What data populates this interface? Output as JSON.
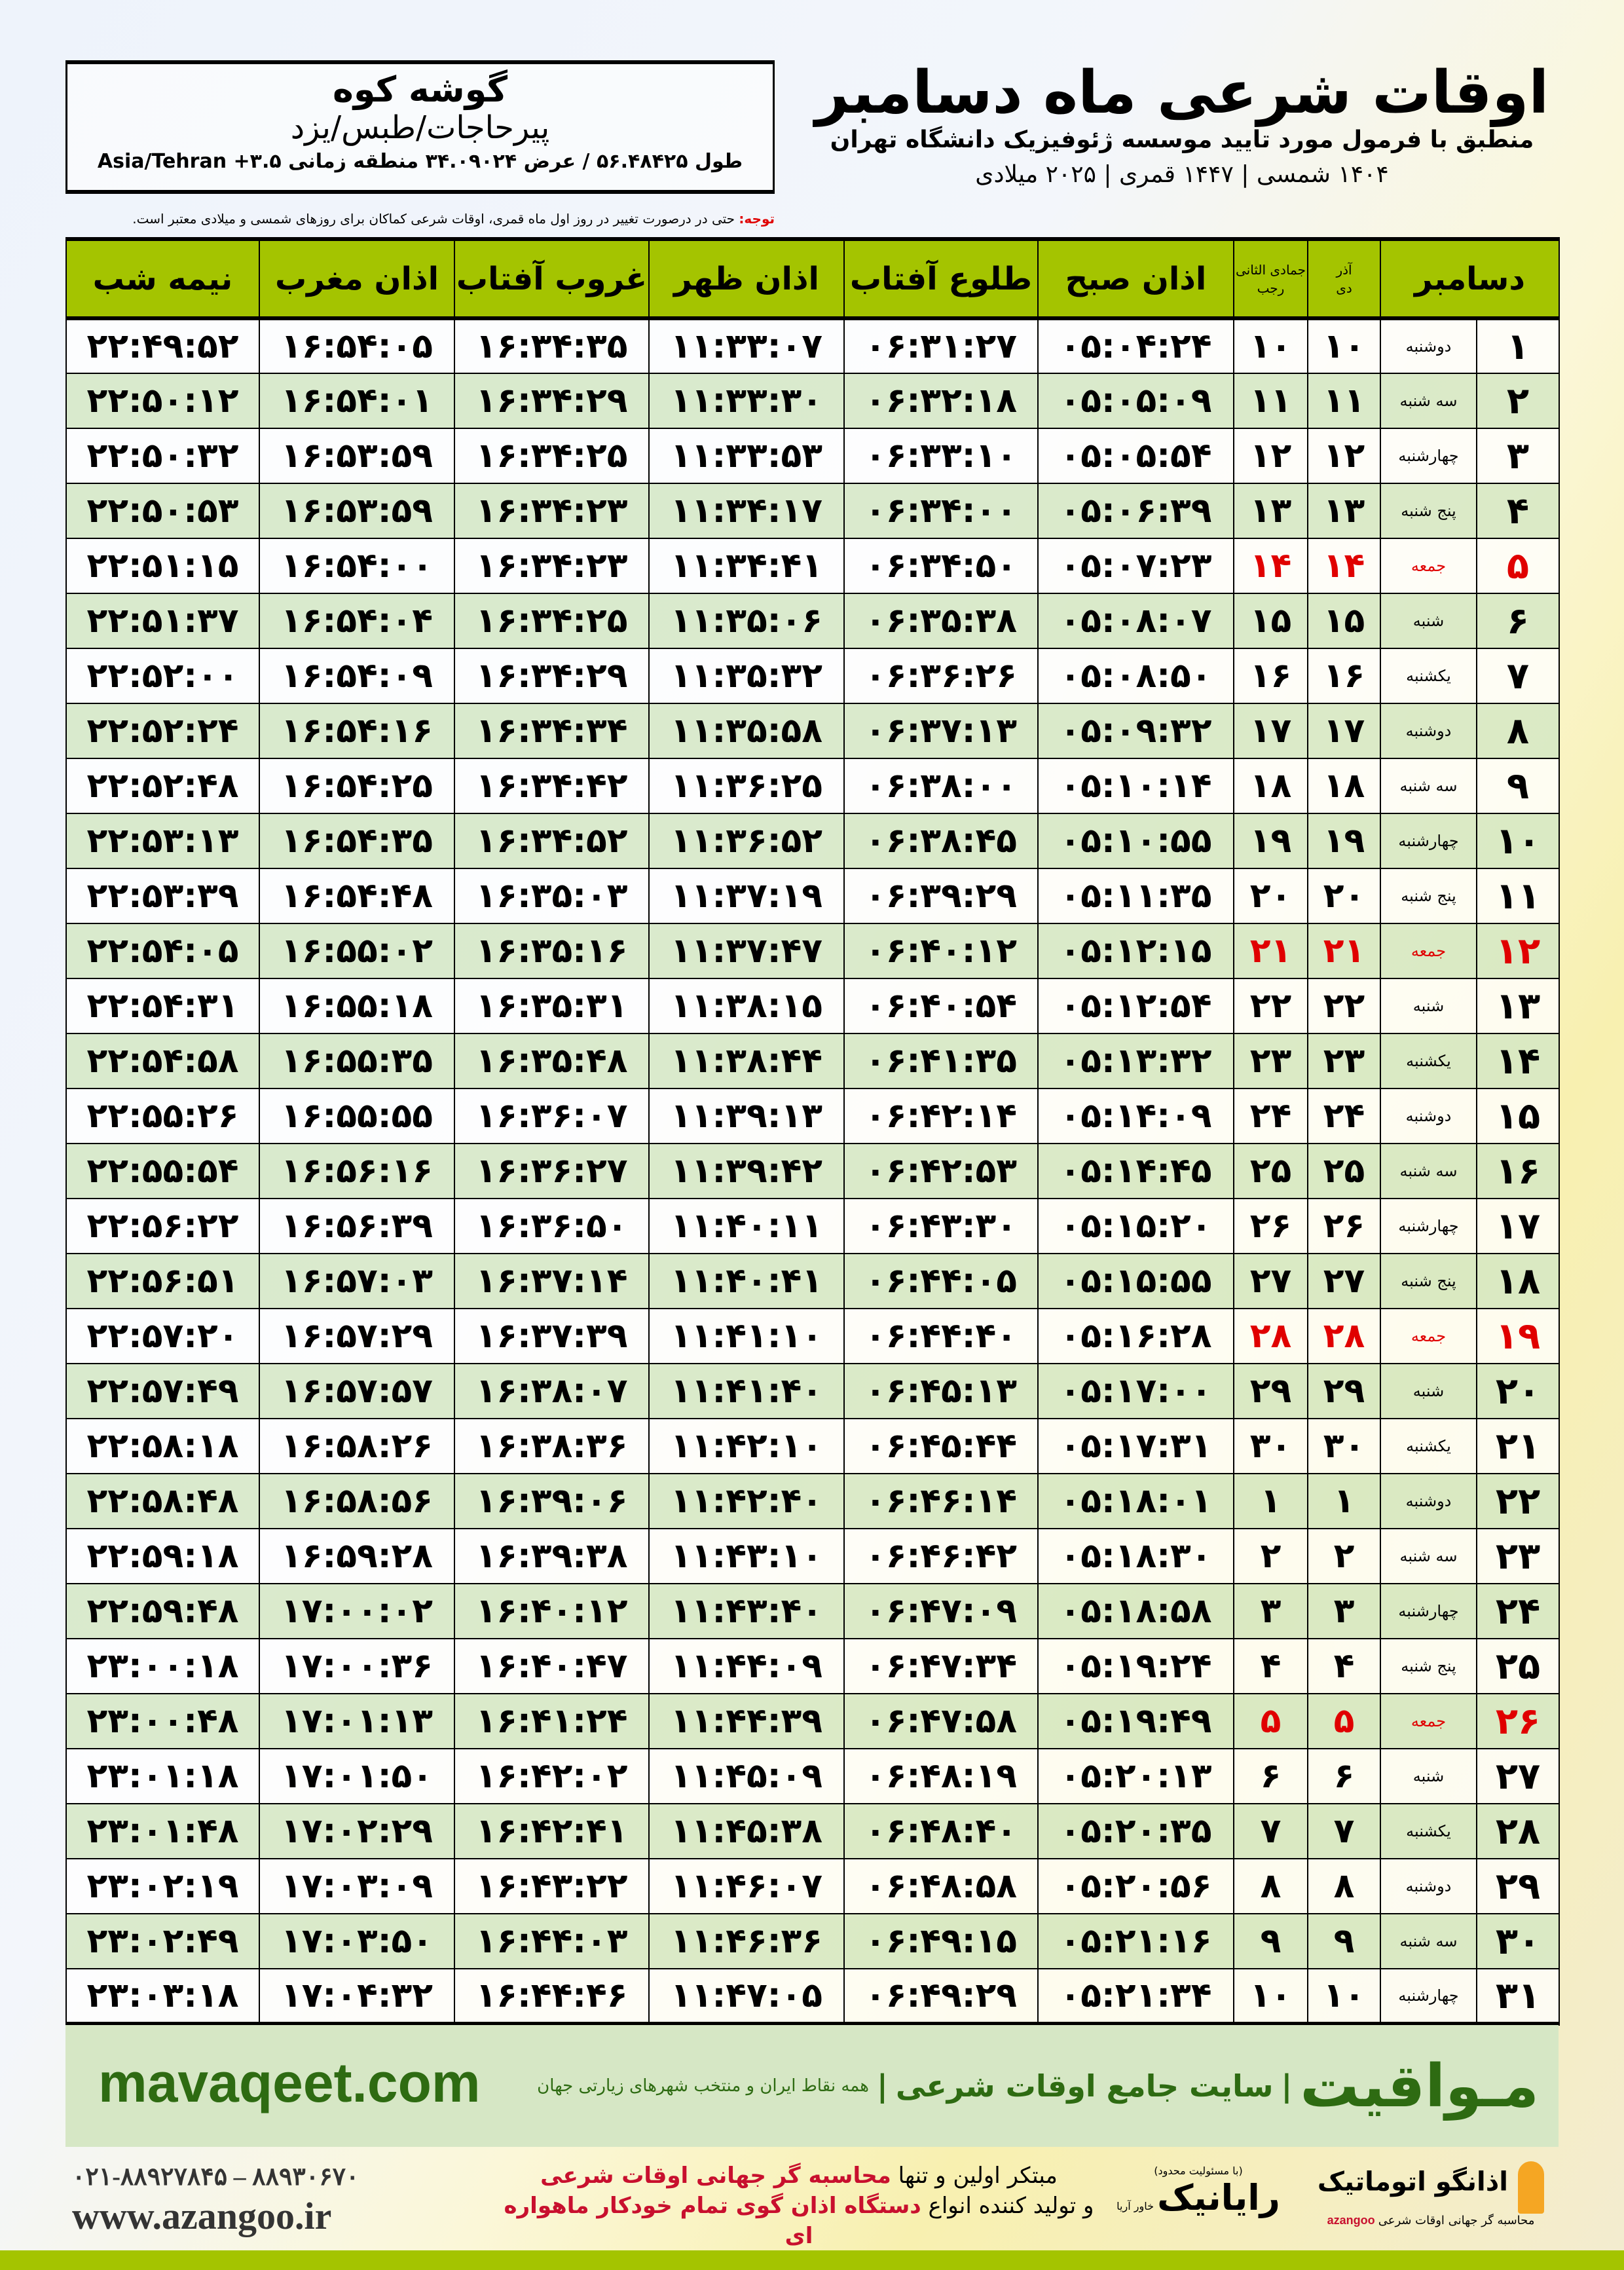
{
  "colors": {
    "header_green": "#a4c400",
    "row_green": "#d5e8c4",
    "friday_red": "#e00000",
    "brand_green": "#2e6b12"
  },
  "location": {
    "name": "گوشه کوه",
    "region": "پیرحاجات/طبس/یزد",
    "coords": "طول ۵۶.۴۸۴۲۵ / عرض ۳۴.۰۹۰۲۴ منطقه زمانی ۳.۵+ Asia/Tehran"
  },
  "title": {
    "main": "اوقات شرعی ماه دسامبر",
    "sub": "منطبق با فرمول مورد تایید موسسه ژئوفیزیک دانشگاه تهران",
    "years": "۱۴۰۴ شمسی | ۱۴۴۷ قمری | ۲۰۲۵ میلادی"
  },
  "note": {
    "label": "توجه:",
    "text": " حتی در درصورت تغییر در روز اول ماه قمری، اوقات شرعی کماکان برای روزهای شمسی و میلادی معتبر است."
  },
  "table": {
    "headers": {
      "month": "دسامبر",
      "dey_top": "آذر",
      "dey": "دی",
      "rajab_top": "جمادی الثانی",
      "rajab": "رجب",
      "sobh": "اذان صبح",
      "tolu": "طلوع آفتاب",
      "zohr": "اذان ظهر",
      "ghorub": "غروب آفتاب",
      "maghrib": "اذان مغرب",
      "nime": "نیمه شب"
    },
    "rows": [
      [
        "۱",
        "دوشنبه",
        "۱۰",
        "۱۰",
        "۰۵:۰۴:۲۴",
        "۰۶:۳۱:۲۷",
        "۱۱:۳۳:۰۷",
        "۱۶:۳۴:۳۵",
        "۱۶:۵۴:۰۵",
        "۲۲:۴۹:۵۲"
      ],
      [
        "۲",
        "سه شنبه",
        "۱۱",
        "۱۱",
        "۰۵:۰۵:۰۹",
        "۰۶:۳۲:۱۸",
        "۱۱:۳۳:۳۰",
        "۱۶:۳۴:۲۹",
        "۱۶:۵۴:۰۱",
        "۲۲:۵۰:۱۲"
      ],
      [
        "۳",
        "چهارشنبه",
        "۱۲",
        "۱۲",
        "۰۵:۰۵:۵۴",
        "۰۶:۳۳:۱۰",
        "۱۱:۳۳:۵۳",
        "۱۶:۳۴:۲۵",
        "۱۶:۵۳:۵۹",
        "۲۲:۵۰:۳۲"
      ],
      [
        "۴",
        "پنج شنبه",
        "۱۳",
        "۱۳",
        "۰۵:۰۶:۳۹",
        "۰۶:۳۴:۰۰",
        "۱۱:۳۴:۱۷",
        "۱۶:۳۴:۲۳",
        "۱۶:۵۳:۵۹",
        "۲۲:۵۰:۵۳"
      ],
      [
        "۵",
        "جمعه",
        "۱۴",
        "۱۴",
        "۰۵:۰۷:۲۳",
        "۰۶:۳۴:۵۰",
        "۱۱:۳۴:۴۱",
        "۱۶:۳۴:۲۳",
        "۱۶:۵۴:۰۰",
        "۲۲:۵۱:۱۵"
      ],
      [
        "۶",
        "شنبه",
        "۱۵",
        "۱۵",
        "۰۵:۰۸:۰۷",
        "۰۶:۳۵:۳۸",
        "۱۱:۳۵:۰۶",
        "۱۶:۳۴:۲۵",
        "۱۶:۵۴:۰۴",
        "۲۲:۵۱:۳۷"
      ],
      [
        "۷",
        "یکشنبه",
        "۱۶",
        "۱۶",
        "۰۵:۰۸:۵۰",
        "۰۶:۳۶:۲۶",
        "۱۱:۳۵:۳۲",
        "۱۶:۳۴:۲۹",
        "۱۶:۵۴:۰۹",
        "۲۲:۵۲:۰۰"
      ],
      [
        "۸",
        "دوشنبه",
        "۱۷",
        "۱۷",
        "۰۵:۰۹:۳۲",
        "۰۶:۳۷:۱۳",
        "۱۱:۳۵:۵۸",
        "۱۶:۳۴:۳۴",
        "۱۶:۵۴:۱۶",
        "۲۲:۵۲:۲۴"
      ],
      [
        "۹",
        "سه شنبه",
        "۱۸",
        "۱۸",
        "۰۵:۱۰:۱۴",
        "۰۶:۳۸:۰۰",
        "۱۱:۳۶:۲۵",
        "۱۶:۳۴:۴۲",
        "۱۶:۵۴:۲۵",
        "۲۲:۵۲:۴۸"
      ],
      [
        "۱۰",
        "چهارشنبه",
        "۱۹",
        "۱۹",
        "۰۵:۱۰:۵۵",
        "۰۶:۳۸:۴۵",
        "۱۱:۳۶:۵۲",
        "۱۶:۳۴:۵۲",
        "۱۶:۵۴:۳۵",
        "۲۲:۵۳:۱۳"
      ],
      [
        "۱۱",
        "پنج شنبه",
        "۲۰",
        "۲۰",
        "۰۵:۱۱:۳۵",
        "۰۶:۳۹:۲۹",
        "۱۱:۳۷:۱۹",
        "۱۶:۳۵:۰۳",
        "۱۶:۵۴:۴۸",
        "۲۲:۵۳:۳۹"
      ],
      [
        "۱۲",
        "جمعه",
        "۲۱",
        "۲۱",
        "۰۵:۱۲:۱۵",
        "۰۶:۴۰:۱۲",
        "۱۱:۳۷:۴۷",
        "۱۶:۳۵:۱۶",
        "۱۶:۵۵:۰۲",
        "۲۲:۵۴:۰۵"
      ],
      [
        "۱۳",
        "شنبه",
        "۲۲",
        "۲۲",
        "۰۵:۱۲:۵۴",
        "۰۶:۴۰:۵۴",
        "۱۱:۳۸:۱۵",
        "۱۶:۳۵:۳۱",
        "۱۶:۵۵:۱۸",
        "۲۲:۵۴:۳۱"
      ],
      [
        "۱۴",
        "یکشنبه",
        "۲۳",
        "۲۳",
        "۰۵:۱۳:۳۲",
        "۰۶:۴۱:۳۵",
        "۱۱:۳۸:۴۴",
        "۱۶:۳۵:۴۸",
        "۱۶:۵۵:۳۵",
        "۲۲:۵۴:۵۸"
      ],
      [
        "۱۵",
        "دوشنبه",
        "۲۴",
        "۲۴",
        "۰۵:۱۴:۰۹",
        "۰۶:۴۲:۱۴",
        "۱۱:۳۹:۱۳",
        "۱۶:۳۶:۰۷",
        "۱۶:۵۵:۵۵",
        "۲۲:۵۵:۲۶"
      ],
      [
        "۱۶",
        "سه شنبه",
        "۲۵",
        "۲۵",
        "۰۵:۱۴:۴۵",
        "۰۶:۴۲:۵۳",
        "۱۱:۳۹:۴۲",
        "۱۶:۳۶:۲۷",
        "۱۶:۵۶:۱۶",
        "۲۲:۵۵:۵۴"
      ],
      [
        "۱۷",
        "چهارشنبه",
        "۲۶",
        "۲۶",
        "۰۵:۱۵:۲۰",
        "۰۶:۴۳:۳۰",
        "۱۱:۴۰:۱۱",
        "۱۶:۳۶:۵۰",
        "۱۶:۵۶:۳۹",
        "۲۲:۵۶:۲۲"
      ],
      [
        "۱۸",
        "پنج شنبه",
        "۲۷",
        "۲۷",
        "۰۵:۱۵:۵۵",
        "۰۶:۴۴:۰۵",
        "۱۱:۴۰:۴۱",
        "۱۶:۳۷:۱۴",
        "۱۶:۵۷:۰۳",
        "۲۲:۵۶:۵۱"
      ],
      [
        "۱۹",
        "جمعه",
        "۲۸",
        "۲۸",
        "۰۵:۱۶:۲۸",
        "۰۶:۴۴:۴۰",
        "۱۱:۴۱:۱۰",
        "۱۶:۳۷:۳۹",
        "۱۶:۵۷:۲۹",
        "۲۲:۵۷:۲۰"
      ],
      [
        "۲۰",
        "شنبه",
        "۲۹",
        "۲۹",
        "۰۵:۱۷:۰۰",
        "۰۶:۴۵:۱۳",
        "۱۱:۴۱:۴۰",
        "۱۶:۳۸:۰۷",
        "۱۶:۵۷:۵۷",
        "۲۲:۵۷:۴۹"
      ],
      [
        "۲۱",
        "یکشنبه",
        "۳۰",
        "۳۰",
        "۰۵:۱۷:۳۱",
        "۰۶:۴۵:۴۴",
        "۱۱:۴۲:۱۰",
        "۱۶:۳۸:۳۶",
        "۱۶:۵۸:۲۶",
        "۲۲:۵۸:۱۸"
      ],
      [
        "۲۲",
        "دوشنبه",
        "۱",
        "۱",
        "۰۵:۱۸:۰۱",
        "۰۶:۴۶:۱۴",
        "۱۱:۴۲:۴۰",
        "۱۶:۳۹:۰۶",
        "۱۶:۵۸:۵۶",
        "۲۲:۵۸:۴۸"
      ],
      [
        "۲۳",
        "سه شنبه",
        "۲",
        "۲",
        "۰۵:۱۸:۳۰",
        "۰۶:۴۶:۴۲",
        "۱۱:۴۳:۱۰",
        "۱۶:۳۹:۳۸",
        "۱۶:۵۹:۲۸",
        "۲۲:۵۹:۱۸"
      ],
      [
        "۲۴",
        "چهارشنبه",
        "۳",
        "۳",
        "۰۵:۱۸:۵۸",
        "۰۶:۴۷:۰۹",
        "۱۱:۴۳:۴۰",
        "۱۶:۴۰:۱۲",
        "۱۷:۰۰:۰۲",
        "۲۲:۵۹:۴۸"
      ],
      [
        "۲۵",
        "پنج شنبه",
        "۴",
        "۴",
        "۰۵:۱۹:۲۴",
        "۰۶:۴۷:۳۴",
        "۱۱:۴۴:۰۹",
        "۱۶:۴۰:۴۷",
        "۱۷:۰۰:۳۶",
        "۲۳:۰۰:۱۸"
      ],
      [
        "۲۶",
        "جمعه",
        "۵",
        "۵",
        "۰۵:۱۹:۴۹",
        "۰۶:۴۷:۵۸",
        "۱۱:۴۴:۳۹",
        "۱۶:۴۱:۲۴",
        "۱۷:۰۱:۱۳",
        "۲۳:۰۰:۴۸"
      ],
      [
        "۲۷",
        "شنبه",
        "۶",
        "۶",
        "۰۵:۲۰:۱۳",
        "۰۶:۴۸:۱۹",
        "۱۱:۴۵:۰۹",
        "۱۶:۴۲:۰۲",
        "۱۷:۰۱:۵۰",
        "۲۳:۰۱:۱۸"
      ],
      [
        "۲۸",
        "یکشنبه",
        "۷",
        "۷",
        "۰۵:۲۰:۳۵",
        "۰۶:۴۸:۴۰",
        "۱۱:۴۵:۳۸",
        "۱۶:۴۲:۴۱",
        "۱۷:۰۲:۲۹",
        "۲۳:۰۱:۴۸"
      ],
      [
        "۲۹",
        "دوشنبه",
        "۸",
        "۸",
        "۰۵:۲۰:۵۶",
        "۰۶:۴۸:۵۸",
        "۱۱:۴۶:۰۷",
        "۱۶:۴۳:۲۲",
        "۱۷:۰۳:۰۹",
        "۲۳:۰۲:۱۹"
      ],
      [
        "۳۰",
        "سه شنبه",
        "۹",
        "۹",
        "۰۵:۲۱:۱۶",
        "۰۶:۴۹:۱۵",
        "۱۱:۴۶:۳۶",
        "۱۶:۴۴:۰۳",
        "۱۷:۰۳:۵۰",
        "۲۳:۰۲:۴۹"
      ],
      [
        "۳۱",
        "چهارشنبه",
        "۱۰",
        "۱۰",
        "۰۵:۲۱:۳۴",
        "۰۶:۴۹:۲۹",
        "۱۱:۴۷:۰۵",
        "۱۶:۴۴:۴۶",
        "۱۷:۰۴:۳۲",
        "۲۳:۰۳:۱۸"
      ]
    ]
  },
  "footer": {
    "site": "mavaqeet.com",
    "brand": "مـواقیت",
    "divider": "|",
    "tagline": "سایت جامع اوقات شرعی",
    "divider2": "|",
    "sub": "همه نقاط ایران و منتخب شهرهای زیارتی جهان",
    "phone": "۰۲۱-۸۸۹۲۷۸۴۵ – ۸۸۹۳۰۶۷۰",
    "web": "www.azangoo.ir",
    "slogan1a": "مبتکر اولین و تنها ",
    "slogan1b": "محاسبه گر جهانی اوقات شرعی",
    "slogan2a": "و تولید کننده انواع ",
    "slogan2b": "دستگاه اذان گوی تمام خودکار ماهواره ای",
    "raya_small": "(با مسئولیت محدود)",
    "raya_sub": "خاور آریا",
    "raya": "رایانیک",
    "azangoo": "اذانگو اتوماتیک",
    "azangoo_sub": "محاسبه گر جهانی اوقات شرعی",
    "azangoo_en": "azangoo"
  }
}
